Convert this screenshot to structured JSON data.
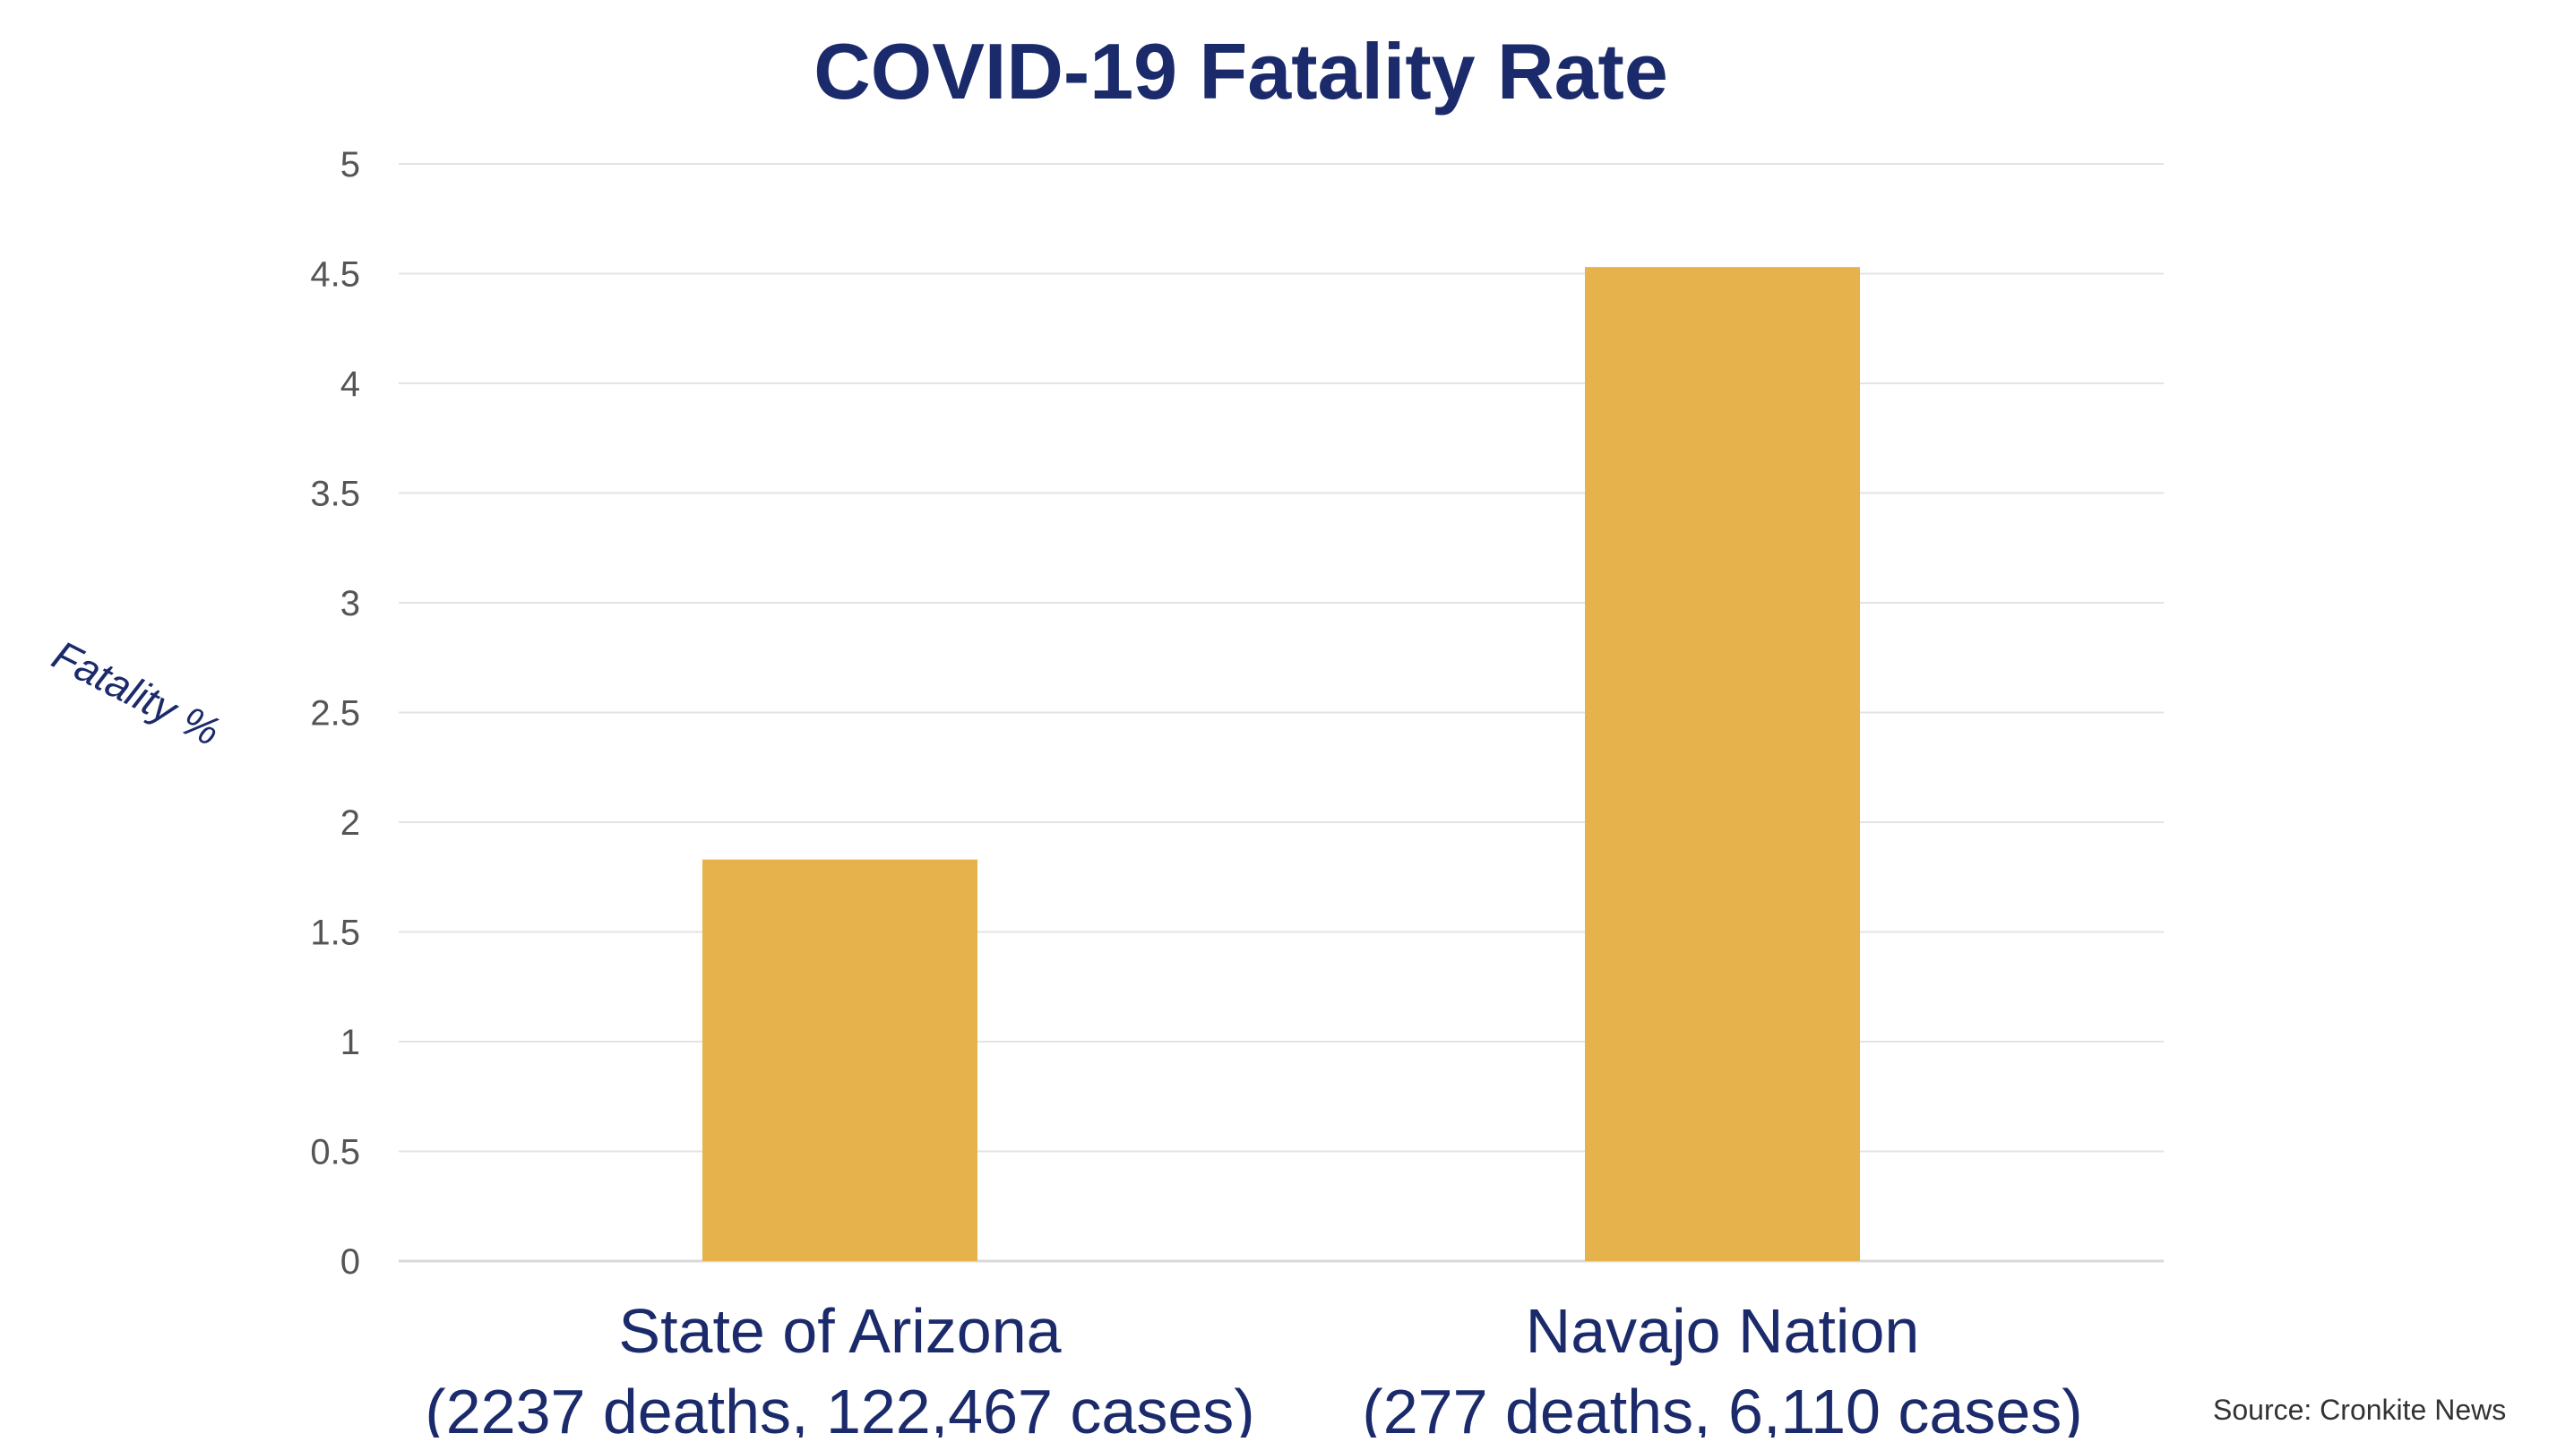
{
  "chart_data": {
    "type": "bar",
    "title": "COVID-19 Fatality Rate",
    "ylabel": "Fatality %",
    "xlabel": "",
    "ylim": [
      0,
      5
    ],
    "yticks": [
      0,
      0.5,
      1,
      1.5,
      2,
      2.5,
      3,
      3.5,
      4,
      4.5,
      5
    ],
    "ytick_labels": [
      "0",
      "0.5",
      "1",
      "1.5",
      "2",
      "2.5",
      "3",
      "3.5",
      "4",
      "4.5",
      "5"
    ],
    "grid": true,
    "categories": [
      {
        "line1": "State of Arizona",
        "line2": "(2237 deaths, 122,467 cases)"
      },
      {
        "line1": "Navajo Nation",
        "line2": "(277 deaths, 6,110 cases)"
      }
    ],
    "values": [
      1.83,
      4.53
    ],
    "bar_color": "#E6B24B",
    "title_color": "#1B2A6B",
    "axis_text_color": "#555555",
    "grid_color": "#E3E3E3"
  },
  "source": "Source: Cronkite News"
}
